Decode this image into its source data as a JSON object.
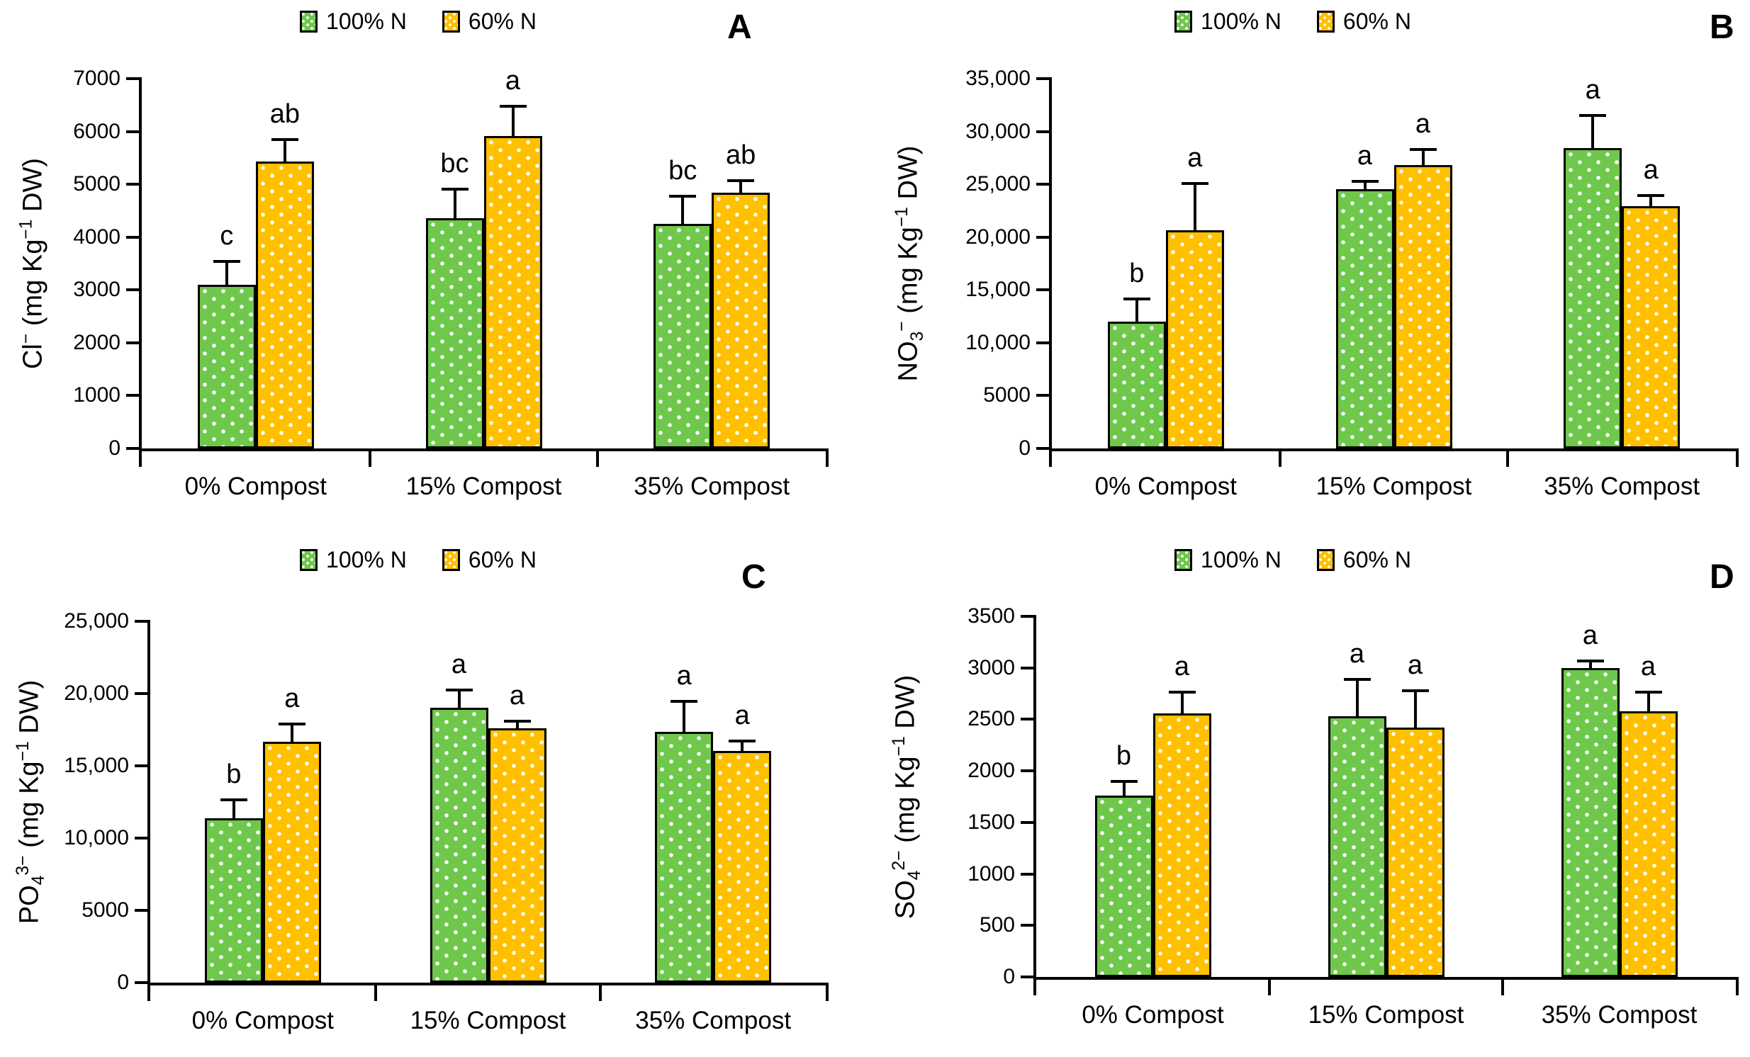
{
  "figure": {
    "background": "#ffffff"
  },
  "colors": {
    "green": "#6FC84C",
    "orange": "#FFC000",
    "outline": "#000000",
    "text": "#000000"
  },
  "legend": {
    "items": [
      {
        "label": "100% N",
        "color_key": "green"
      },
      {
        "label": "60% N",
        "color_key": "orange"
      }
    ]
  },
  "categories": [
    "0% Compost",
    "15% Compost",
    "35% Compost"
  ],
  "chart_data": [
    {
      "type": "bar",
      "panel_letter": "A",
      "ylabel_text": "Cl− (mg Kg−1 DW)",
      "ylabel_parts": [
        {
          "t": "Cl"
        },
        {
          "t": "−",
          "sup": true
        },
        {
          "t": " (mg Kg"
        },
        {
          "t": "−1",
          "sup": true
        },
        {
          "t": " DW)"
        }
      ],
      "xlabel": "",
      "categories": [
        "0% Compost",
        "15% Compost",
        "35% Compost"
      ],
      "ylim": [
        0,
        7000
      ],
      "ytick_step": 1000,
      "y_ticks": [
        "7000",
        "6000",
        "5000",
        "4000",
        "3000",
        "2000",
        "1000",
        "0"
      ],
      "grid": false,
      "legend_position": "top-center",
      "series": [
        {
          "name": "100% N",
          "color_key": "green",
          "values": [
            3100,
            4360,
            4250
          ],
          "errors": [
            430,
            540,
            510
          ],
          "letters": [
            "c",
            "bc",
            "bc"
          ]
        },
        {
          "name": "60% N",
          "color_key": "orange",
          "values": [
            5430,
            5910,
            4840
          ],
          "errors": [
            400,
            550,
            215
          ],
          "letters": [
            "ab",
            "a",
            "ab"
          ]
        }
      ]
    },
    {
      "type": "bar",
      "panel_letter": "B",
      "ylabel_text": "NO3− (mg Kg−1 DW)",
      "ylabel_parts": [
        {
          "t": "NO"
        },
        {
          "t": "3",
          "sub": true
        },
        {
          "t": "−",
          "sup": true
        },
        {
          "t": " (mg Kg"
        },
        {
          "t": "−1",
          "sup": true
        },
        {
          "t": " DW)"
        }
      ],
      "xlabel": "",
      "categories": [
        "0% Compost",
        "15% Compost",
        "35% Compost"
      ],
      "ylim": [
        0,
        35000
      ],
      "ytick_step": 5000,
      "y_ticks": [
        "35,000",
        "30,000",
        "25,000",
        "20,000",
        "15,000",
        "10,000",
        "5000",
        "0"
      ],
      "grid": false,
      "legend_position": "top-center",
      "series": [
        {
          "name": "100% N",
          "color_key": "green",
          "values": [
            12000,
            24550,
            28400
          ],
          "errors": [
            2100,
            670,
            3030
          ],
          "letters": [
            "b",
            "a",
            "a"
          ]
        },
        {
          "name": "60% N",
          "color_key": "orange",
          "values": [
            20650,
            26850,
            22950
          ],
          "errors": [
            4350,
            1350,
            950
          ],
          "letters": [
            "a",
            "a",
            "a"
          ]
        }
      ]
    },
    {
      "type": "bar",
      "panel_letter": "C",
      "ylabel_text": "PO43− (mg Kg−1 DW)",
      "ylabel_parts": [
        {
          "t": "PO"
        },
        {
          "t": "4",
          "sub": true
        },
        {
          "t": "3−",
          "sup": true
        },
        {
          "t": " (mg Kg"
        },
        {
          "t": "−1",
          "sup": true
        },
        {
          "t": " DW)"
        }
      ],
      "xlabel": "",
      "categories": [
        "0% Compost",
        "15% Compost",
        "35% Compost"
      ],
      "ylim": [
        0,
        25000
      ],
      "ytick_step": 5000,
      "y_ticks": [
        "25,000",
        "20,000",
        "15,000",
        "10,000",
        "5000",
        "0"
      ],
      "grid": false,
      "legend_position": "top-center",
      "series": [
        {
          "name": "100% N",
          "color_key": "green",
          "values": [
            11350,
            19020,
            17340
          ],
          "errors": [
            1250,
            1190,
            2060
          ],
          "letters": [
            "b",
            "a",
            "a"
          ]
        },
        {
          "name": "60% N",
          "color_key": "orange",
          "values": [
            16670,
            17580,
            16050
          ],
          "errors": [
            1150,
            480,
            620
          ],
          "letters": [
            "a",
            "a",
            "a"
          ]
        }
      ]
    },
    {
      "type": "bar",
      "panel_letter": "D",
      "ylabel_text": "SO42− (mg Kg−1 DW)",
      "ylabel_parts": [
        {
          "t": "SO"
        },
        {
          "t": "4",
          "sub": true
        },
        {
          "t": "2−",
          "sup": true
        },
        {
          "t": " (mg Kg"
        },
        {
          "t": "−1",
          "sup": true
        },
        {
          "t": " DW)"
        }
      ],
      "xlabel": "",
      "categories": [
        "0% Compost",
        "15% Compost",
        "35% Compost"
      ],
      "ylim": [
        0,
        3500
      ],
      "ytick_step": 500,
      "y_ticks": [
        "3500",
        "3000",
        "2500",
        "2000",
        "1500",
        "1000",
        "500",
        "0"
      ],
      "grid": false,
      "legend_position": "top-center",
      "series": [
        {
          "name": "100% N",
          "color_key": "green",
          "values": [
            1760,
            2530,
            3000
          ],
          "errors": [
            130,
            350,
            60
          ],
          "letters": [
            "b",
            "a",
            "a"
          ]
        },
        {
          "name": "60% N",
          "color_key": "orange",
          "values": [
            2560,
            2420,
            2580
          ],
          "errors": [
            200,
            350,
            180
          ],
          "letters": [
            "a",
            "a",
            "a"
          ]
        }
      ]
    }
  ]
}
